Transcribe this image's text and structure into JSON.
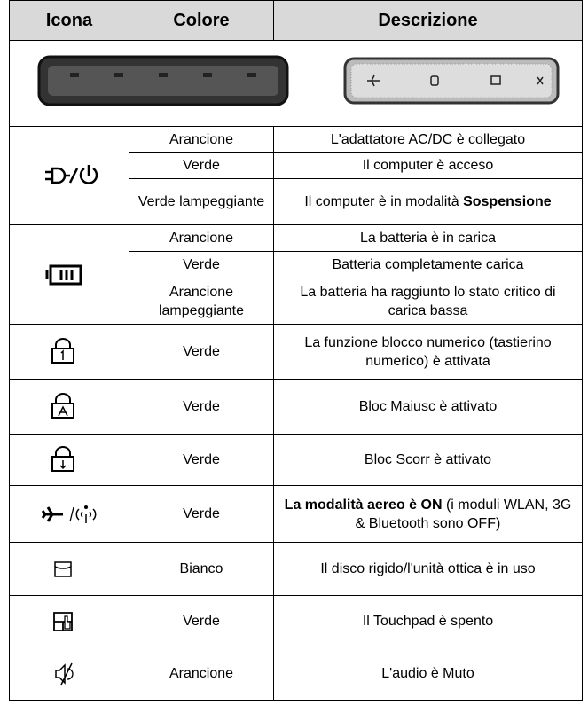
{
  "table": {
    "header": [
      "Icona",
      "Colore",
      "Descrizione"
    ],
    "rows": [
      {
        "color": "Arancione",
        "description": [
          {
            "text": "L'adattatore AC/DC è collegato"
          }
        ]
      },
      {
        "color": "Verde",
        "description": [
          {
            "text": "Il computer è acceso"
          }
        ]
      },
      {
        "color": "Verde lampeggiante",
        "description": [
          {
            "text": "Il computer è in modalità "
          },
          {
            "text": "Sospensione",
            "bold": true
          }
        ]
      },
      {
        "color": "Arancione",
        "description": [
          {
            "text": "La batteria è in carica"
          }
        ]
      },
      {
        "color": "Verde",
        "description": [
          {
            "text": "Batteria completamente carica"
          }
        ]
      },
      {
        "color": "Arancione lampeggiante",
        "description": [
          {
            "text": "La batteria ha raggiunto lo stato critico di carica bassa"
          }
        ]
      },
      {
        "color": "Verde",
        "description": [
          {
            "text": "La funzione blocco numerico (tastierino numerico) è attivata"
          }
        ]
      },
      {
        "color": "Verde",
        "description": [
          {
            "text": "Bloc Maiusc è attivato"
          }
        ]
      },
      {
        "color": "Verde",
        "description": [
          {
            "text": "Bloc Scorr è attivato"
          }
        ]
      },
      {
        "color": "Verde",
        "description": [
          {
            "text": "La modalità aereo è ON",
            "bold": true
          },
          {
            "text": " (i moduli WLAN, 3G & Bluetooth sono OFF)"
          }
        ]
      },
      {
        "color": "Bianco",
        "description": [
          {
            "text": "Il disco rigido/l'unità ottica è in uso"
          }
        ]
      },
      {
        "color": "Verde",
        "description": [
          {
            "text": "Il Touchpad è spento"
          }
        ]
      },
      {
        "color": "Arancione",
        "description": [
          {
            "text": "L'audio è Muto"
          }
        ]
      }
    ]
  }
}
